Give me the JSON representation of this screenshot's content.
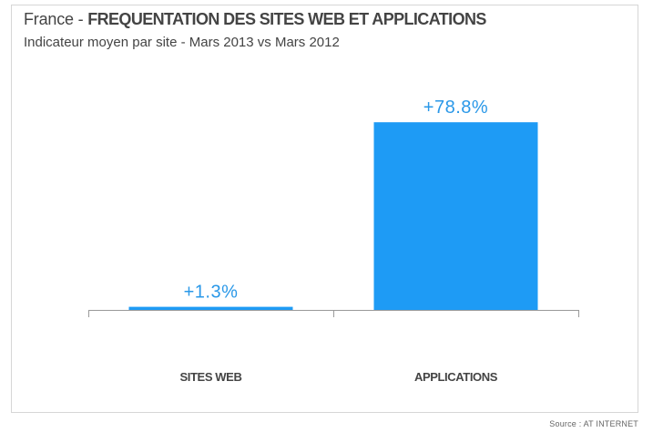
{
  "header": {
    "title_prefix": "France - ",
    "title_main": "FREQUENTATION DES SITES WEB ET APPLICATIONS",
    "subtitle": "Indicateur moyen par site - Mars 2013 vs Mars 2012"
  },
  "footer": {
    "source": "Source : AT INTERNET"
  },
  "colors": {
    "bar": "#1E9BF5",
    "label": "#2A98E8",
    "axis": "#9a9a9a"
  },
  "chart_data": {
    "type": "bar",
    "categories": [
      "SITES WEB",
      "APPLICATIONS"
    ],
    "values": [
      1.3,
      78.8
    ],
    "value_labels": [
      "+1.3%",
      "+78.8%"
    ],
    "title": "France - FREQUENTATION DES SITES WEB ET APPLICATIONS",
    "subtitle": "Indicateur moyen par site - Mars 2013 vs Mars 2012",
    "xlabel": "",
    "ylabel": "",
    "ylim": [
      0,
      80
    ],
    "grid": false,
    "legend": "none"
  }
}
